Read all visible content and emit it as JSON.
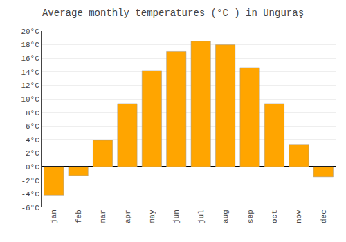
{
  "chart_data": {
    "type": "bar",
    "title": "Average monthly temperatures (°C ) in Unguraş",
    "categories": [
      "jan",
      "feb",
      "mar",
      "apr",
      "may",
      "jun",
      "jul",
      "aug",
      "sep",
      "oct",
      "nov",
      "dec"
    ],
    "values": [
      -4.2,
      -1.3,
      3.9,
      9.3,
      14.2,
      17.0,
      18.5,
      18.0,
      14.6,
      9.3,
      3.3,
      -1.5
    ],
    "color": "#FFA500",
    "ylim": [
      -6,
      20
    ],
    "yticks": [
      {
        "value": -6,
        "label": "-6°C"
      },
      {
        "value": -4,
        "label": "-4°C"
      },
      {
        "value": -2,
        "label": "-2°C"
      },
      {
        "value": 0,
        "label": "0°C"
      },
      {
        "value": 2,
        "label": "2°C"
      },
      {
        "value": 4,
        "label": "4°C"
      },
      {
        "value": 6,
        "label": "6°C"
      },
      {
        "value": 8,
        "label": "8°C"
      },
      {
        "value": 10,
        "label": "10°C"
      },
      {
        "value": 12,
        "label": "12°C"
      },
      {
        "value": 14,
        "label": "14°C"
      },
      {
        "value": 16,
        "label": "16°C"
      },
      {
        "value": 18,
        "label": "18°C"
      },
      {
        "value": 20,
        "label": "20°C"
      }
    ],
    "grid": true
  }
}
